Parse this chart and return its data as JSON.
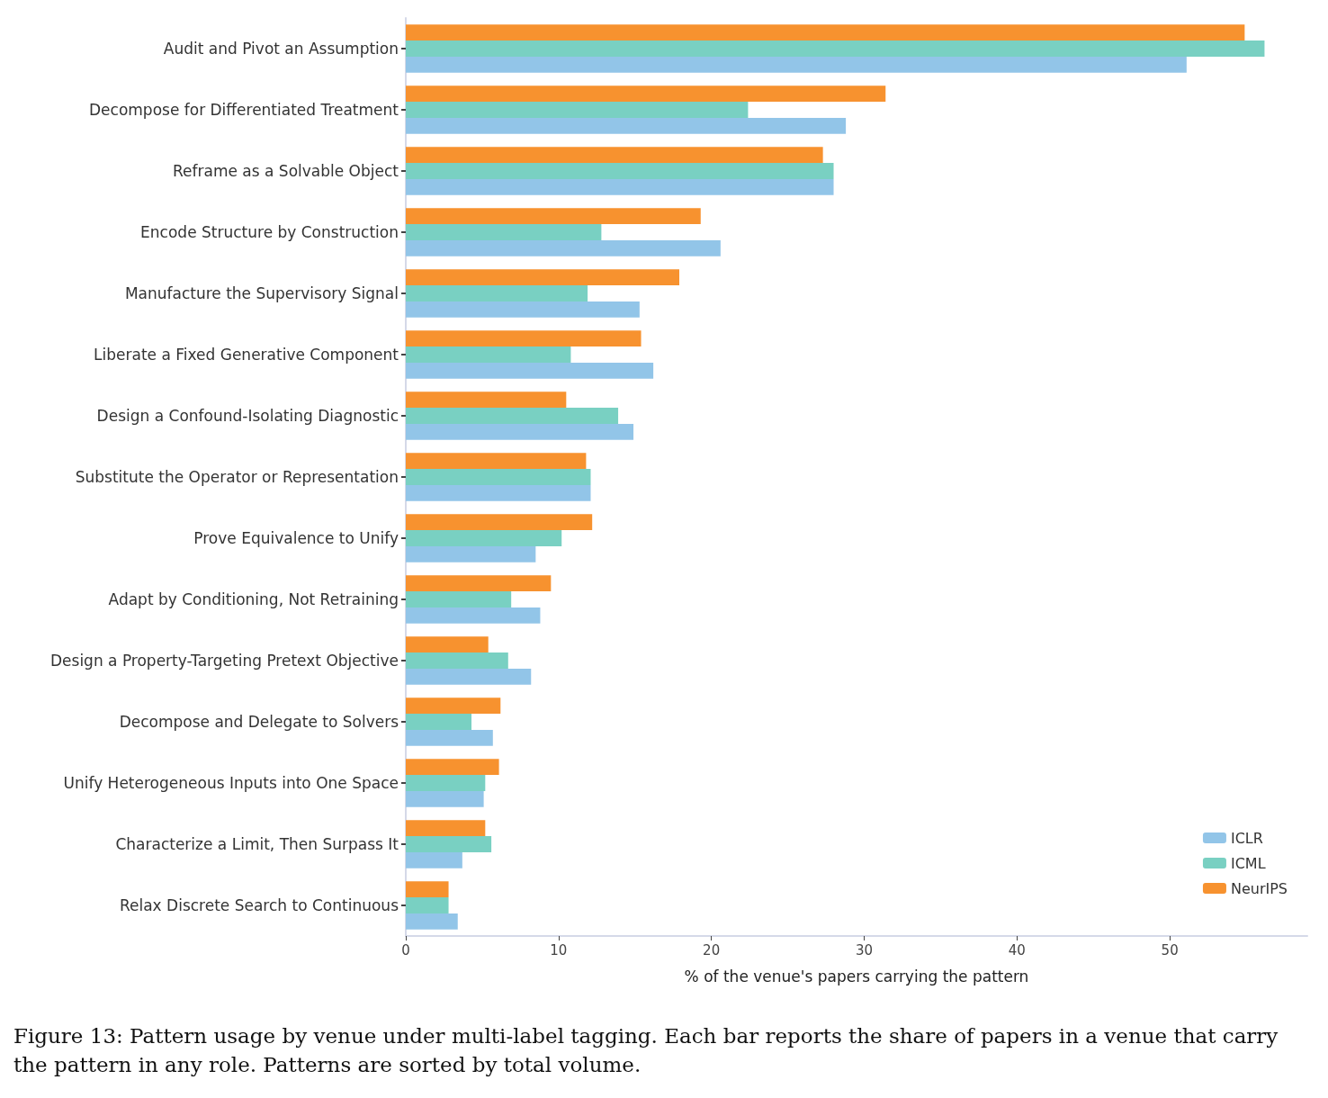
{
  "chart_data": {
    "type": "bar",
    "orientation": "horizontal",
    "xlabel": "% of the venue's papers carrying the pattern",
    "categories": [
      "Audit and Pivot an Assumption",
      "Decompose for Differentiated Treatment",
      "Reframe as a Solvable Object",
      "Encode Structure by Construction",
      "Manufacture the Supervisory Signal",
      "Liberate a Fixed Generative Component",
      "Design a Confound-Isolating Diagnostic",
      "Substitute the Operator or Representation",
      "Prove Equivalence to Unify",
      "Adapt by Conditioning, Not Retraining",
      "Design a Property-Targeting Pretext Objective",
      "Decompose and Delegate to Solvers",
      "Unify Heterogeneous Inputs into One Space",
      "Characterize a Limit, Then Surpass It",
      "Relax Discrete Search to Continuous"
    ],
    "series": [
      {
        "name": "ICLR",
        "color": "#92c5e8",
        "values": [
          51.1,
          28.8,
          28.0,
          20.6,
          15.3,
          16.2,
          14.9,
          12.1,
          8.5,
          8.8,
          8.2,
          5.7,
          5.1,
          3.7,
          3.4
        ]
      },
      {
        "name": "ICML",
        "color": "#79d0c2",
        "values": [
          56.2,
          22.4,
          28.0,
          12.8,
          11.9,
          10.8,
          13.9,
          12.1,
          10.2,
          6.9,
          6.7,
          4.3,
          5.2,
          5.6,
          2.8
        ]
      },
      {
        "name": "NeurIPS",
        "color": "#f7922f",
        "values": [
          54.9,
          31.4,
          27.3,
          19.3,
          17.9,
          15.4,
          10.5,
          11.8,
          12.2,
          9.5,
          5.4,
          6.2,
          6.1,
          5.2,
          2.8
        ]
      }
    ],
    "xlim": [
      0,
      59
    ],
    "xticks": [
      0,
      10,
      20,
      30,
      40,
      50
    ],
    "grid": false,
    "legend": "bottom right",
    "annotations": [
      "Figure 13: Pattern usage by venue under multi-label tagging. Each bar reports the share of papers in a venue that carry the pattern in any role. Patterns are sorted by total volume."
    ]
  }
}
